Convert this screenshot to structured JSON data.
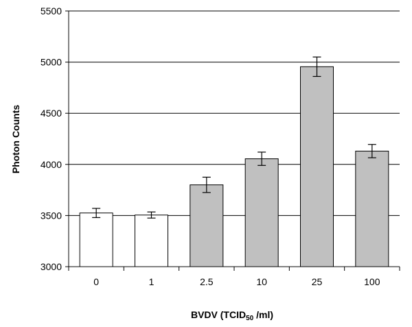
{
  "chart_data": {
    "type": "bar",
    "title": "",
    "xlabel": "BVDV (TCID50 /ml)",
    "xlabel_parts": {
      "main": "BVDV (TCID",
      "subscript": "50",
      "suffix": " /ml)"
    },
    "ylabel": "Photon Counts",
    "categories": [
      "0",
      "1",
      "2.5",
      "10",
      "25",
      "100"
    ],
    "values": [
      3525,
      3505,
      3800,
      4055,
      4955,
      4130
    ],
    "errors": [
      45,
      30,
      75,
      65,
      95,
      65
    ],
    "bar_colors": [
      "#ffffff",
      "#ffffff",
      "#c0c0c0",
      "#c0c0c0",
      "#c0c0c0",
      "#c0c0c0"
    ],
    "ylim": [
      3000,
      5500
    ],
    "yticks": [
      3000,
      3500,
      4000,
      4500,
      5000,
      5500
    ],
    "grid": true,
    "legend": "none"
  }
}
